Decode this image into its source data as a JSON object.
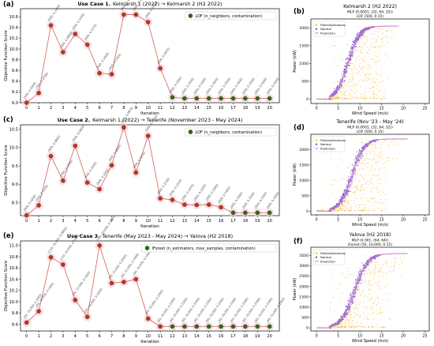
{
  "chart_data": [
    {
      "type": "line",
      "panel_label": "(a)",
      "title_prefix": "Use Case",
      "title_num": "1.",
      "title_rest": "Kelmarsh 1 (2022) → Kelmarsh 2 (H2 2022)",
      "legend": "LOF (n_neighbors, contamination)",
      "xlabel": "Iteration",
      "ylabel": "Objective Function Score",
      "xlim": [
        -0.5,
        20.8
      ],
      "ylim": [
        9.0,
        10.75
      ],
      "yticks": [
        9.0,
        9.2,
        9.4,
        9.6,
        9.8,
        10.0,
        10.2,
        10.4,
        10.6
      ],
      "ytick_labels": [
        "9.0",
        "9.2",
        "9.4",
        "9.6",
        "9.8",
        "10.0",
        "10.2",
        "10.4",
        "10.6"
      ],
      "x": [
        0,
        1,
        2,
        3,
        4,
        5,
        6,
        7,
        8,
        9,
        10,
        11,
        12,
        13,
        14,
        15,
        16,
        17,
        18,
        19,
        20
      ],
      "values": [
        9.0,
        9.18,
        10.44,
        9.94,
        10.28,
        10.08,
        9.55,
        9.53,
        10.64,
        10.64,
        10.5,
        9.64,
        9.1,
        9.08,
        9.08,
        9.08,
        9.08,
        9.08,
        9.08,
        9.08,
        9.08
      ],
      "best_from": 12,
      "annotations": [
        "(500, 0.1005)",
        "(500, 0.0700)",
        "(500, 0.1400)",
        "(500, 0.0850)",
        "(500, 0.1250)",
        "(500, 0.1175)",
        "(500, 0.1400)",
        "(400, 0.1325)",
        "(500, 0.1275)",
        "(500, 0.1025)",
        "(500, 0.1050)",
        "(500, 0.0925)",
        "(500, 0.1500)",
        "(500, 0.1500)",
        "(500, 0.1500)",
        "(500, 0.1500)",
        "(500, 0.1500)",
        "(500, 0.1500)",
        "(500, 0.1500)",
        "(500, 0.1500)",
        "(500, 0.1500)"
      ]
    },
    {
      "type": "line",
      "panel_label": "(c)",
      "title_prefix": "Use Case",
      "title_num": "2.",
      "title_rest": "Kelmarsh 1 (2022) → Tenerife (November 2023 - May 2024)",
      "legend": "LOF (n_neighbors, contamination)",
      "xlabel": "Iteration",
      "ylabel": "Objective Function Score",
      "xlim": [
        -0.5,
        20.8
      ],
      "ylim": [
        8.15,
        10.62
      ],
      "yticks": [
        8.5,
        9.0,
        9.5,
        10.0,
        10.5
      ],
      "ytick_labels": [
        "8.5",
        "9.0",
        "9.5",
        "10.0",
        "10.5"
      ],
      "x": [
        0,
        1,
        2,
        3,
        4,
        5,
        6,
        7,
        8,
        9,
        10,
        11,
        12,
        13,
        14,
        15,
        16,
        17,
        18,
        19,
        20
      ],
      "values": [
        8.16,
        8.43,
        9.77,
        9.1,
        10.05,
        9.05,
        8.87,
        9.52,
        10.55,
        9.32,
        10.32,
        8.62,
        8.58,
        8.45,
        8.44,
        8.45,
        8.38,
        8.23,
        8.23,
        8.23,
        8.23
      ],
      "best_from": 17,
      "annotations": [
        "(500, 0.1000)",
        "(500, 0.1250)",
        "(500, 0.0800)",
        "(500, 0.1500)",
        "(500, 0.0825)",
        "(500, 0.1000)",
        "(500, 0.1050)",
        "(500, 0.0850)",
        "(500, 0.0875)",
        "(200, 0.1375)",
        "(500, 0.1025)",
        "(500, 0.1100)",
        "(500, 0.1225)",
        "(500, 0.1475)",
        "(500, 0.1425)",
        "(500, 0.1300)",
        "(500, 0.1400)",
        "(500, 0.1500)",
        "(500, 0.1500)",
        "(500, 0.1500)",
        "(500, 0.1500)"
      ]
    },
    {
      "type": "line",
      "panel_label": "(e)",
      "title_prefix": "Use Case",
      "title_num": "3.",
      "title_rest": "Tenerife (May 2023 - May 2024) → Yalova (H2 2018)",
      "legend": "iForest (n_estimators, max_samples, contamination)",
      "xlabel": "Iteration",
      "ylabel": "Objective Function Score",
      "xlim": [
        -0.5,
        20.8
      ],
      "ylim": [
        9.48,
        11.08
      ],
      "yticks": [
        9.6,
        9.8,
        10.0,
        10.2,
        10.4,
        10.6,
        10.8,
        11.0
      ],
      "ytick_labels": [
        "9.6",
        "9.8",
        "10.0",
        "10.2",
        "10.4",
        "10.6",
        "10.8",
        "11.0"
      ],
      "x": [
        0,
        1,
        2,
        3,
        4,
        5,
        6,
        7,
        8,
        9,
        10,
        11,
        12,
        13,
        14,
        15,
        16,
        17,
        18,
        19,
        20
      ],
      "values": [
        9.63,
        9.83,
        10.79,
        10.66,
        10.03,
        9.73,
        11.0,
        10.33,
        10.35,
        10.4,
        9.7,
        9.56,
        9.56,
        9.56,
        9.56,
        9.56,
        9.56,
        9.56,
        9.56,
        9.56,
        9.56
      ],
      "best_from": 12,
      "annotations": [
        "(50, 10,000, 0.1500)",
        "(50, 10,000, 0.1500)",
        "(110, 15,000, 0.0850)",
        "(110, 10,000, 0.1000)",
        "(50, 11,000, 0.1500)",
        "(50, 10,000, 0.1500)",
        "(110, 10,000, 0.0500)",
        "(90, 12,000, 0.1500)",
        "(90, 11,000, 0.1500)",
        "(50, 10,000, 0.1500)",
        "(50, 10,000, 0.1500)",
        "(50, 10,000, 0.1500)",
        "(50, 10,000, 0.1500)",
        "(50, 10,000, 0.1500)",
        "(50, 10,000, 0.1500)",
        "(50, 10,000, 0.1500)",
        "(50, 10,000, 0.1500)",
        "(50, 10,000, 0.1500)",
        "(50, 10,000, 0.1500)",
        "(50, 10,000, 0.1500)",
        "(50, 10,000, 0.1500)"
      ]
    },
    {
      "type": "scatter",
      "panel_label": "(b)",
      "title": "Kelmarsh 2 (H2 2022)",
      "subtitle1": "MLP (0.0001, (32, 64, 32))",
      "subtitle2": "LOF (500, 0.15)",
      "xlabel": "Wind Speed (m/s)",
      "ylabel": "Power (kW)",
      "xlim": [
        -1.3,
        26
      ],
      "ylim": [
        -120,
        2250
      ],
      "xticks": [
        0,
        5,
        10,
        15,
        20,
        25
      ],
      "yticks": [
        0,
        500,
        1000,
        1500,
        2000
      ],
      "legend": [
        "Filtered/Anomaly",
        "Normal",
        "Prediction"
      ],
      "rated": 2050,
      "cut_in": 3,
      "v50": 7.3,
      "spread": 1.3,
      "pred_end": 19
    },
    {
      "type": "scatter",
      "panel_label": "(d)",
      "title": "Tenerife (Nov '23 - May '24)",
      "subtitle1": "MLP (0.0001, (32, 64, 32))",
      "subtitle2": "LOF (500, 0.15)",
      "xlabel": "Wind Speed (m/s)",
      "ylabel": "Power (kW)",
      "xlim": [
        -1.3,
        26
      ],
      "ylim": [
        -120,
        2500
      ],
      "xticks": [
        0,
        5,
        10,
        15,
        20,
        25
      ],
      "yticks": [
        0,
        500,
        1000,
        1500,
        2000
      ],
      "legend": [
        "Filtered/Anomaly",
        "Normal",
        "Prediction"
      ],
      "rated": 2350,
      "cut_in": 3,
      "v50": 8.2,
      "spread": 1.4,
      "pred_end": 21
    },
    {
      "type": "scatter",
      "panel_label": "(f)",
      "title": "Yalova (H2 2018)",
      "subtitle1": "MLP (0.001, (64, 64))",
      "subtitle2": "iForest (50, 10,000, 0.15)",
      "xlabel": "Wind Speed (m/s)",
      "ylabel": "Power (kW)",
      "xlim": [
        -1.3,
        26
      ],
      "ylim": [
        -150,
        3900
      ],
      "xticks": [
        0,
        5,
        10,
        15,
        20,
        25
      ],
      "yticks": [
        0,
        500,
        1000,
        1500,
        2000,
        2500,
        3000,
        3500
      ],
      "legend": [
        "Filtered/Anomaly",
        "Normal",
        "Prediction"
      ],
      "rated": 3600,
      "cut_in": 3,
      "v50": 8.8,
      "spread": 1.5,
      "pred_end": 21
    }
  ],
  "colors": {
    "line": "#d9706a",
    "marker": "#b33a1e",
    "best": "#2f6b12",
    "best_edge": "#1e4a0a",
    "glow": "#f4c5d6",
    "anomaly": "#f6b93b",
    "normal": "#7b52c7",
    "prediction": "#d47fd4"
  }
}
